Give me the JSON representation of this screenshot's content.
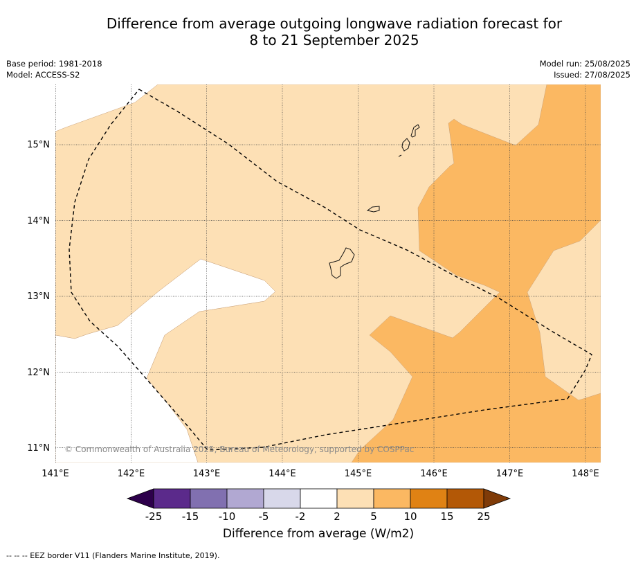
{
  "title_line1": "Difference from average outgoing longwave radiation forecast for",
  "title_line2": "8 to 21 September 2025",
  "base_period": "Base period: 1981-2018",
  "model": "Model: ACCESS-S2",
  "model_run": "Model run: 25/08/2025",
  "issued": "Issued: 27/08/2025",
  "copyright": "© Commonwealth of Australia 2025, Bureau of Meteorology, supported by COSPPac",
  "footer": "--  --  -- EEZ border V11 (Flanders Marine Institute, 2019).",
  "colorbar": {
    "title": "Difference from average (W/m2)",
    "ticks": [
      "-25",
      "-15",
      "-10",
      "-5",
      "-2",
      "2",
      "5",
      "10",
      "15",
      "25"
    ],
    "colors": [
      "#5b2a8b",
      "#8170b0",
      "#b1a8d2",
      "#d8d8ea",
      "#ffffff",
      "#fde0b5",
      "#fbb862",
      "#e08214",
      "#b35806"
    ],
    "under_color": "#2d004b",
    "over_color": "#7f3b08"
  },
  "map": {
    "lon_labels": [
      "141°E",
      "142°E",
      "143°E",
      "144°E",
      "145°E",
      "146°E",
      "147°E",
      "148°E"
    ],
    "lat_labels": [
      "15°N",
      "14°N",
      "13°N",
      "12°N",
      "11°N"
    ],
    "extent": {
      "lon": [
        141.0,
        148.2
      ],
      "lat": [
        10.8,
        15.8
      ]
    },
    "background_fill": "#fde0b5",
    "regions": [
      {
        "class": "-2 to 2",
        "color": "#ffffff"
      },
      {
        "class": "5 to 10",
        "color": "#fbb862"
      }
    ]
  }
}
